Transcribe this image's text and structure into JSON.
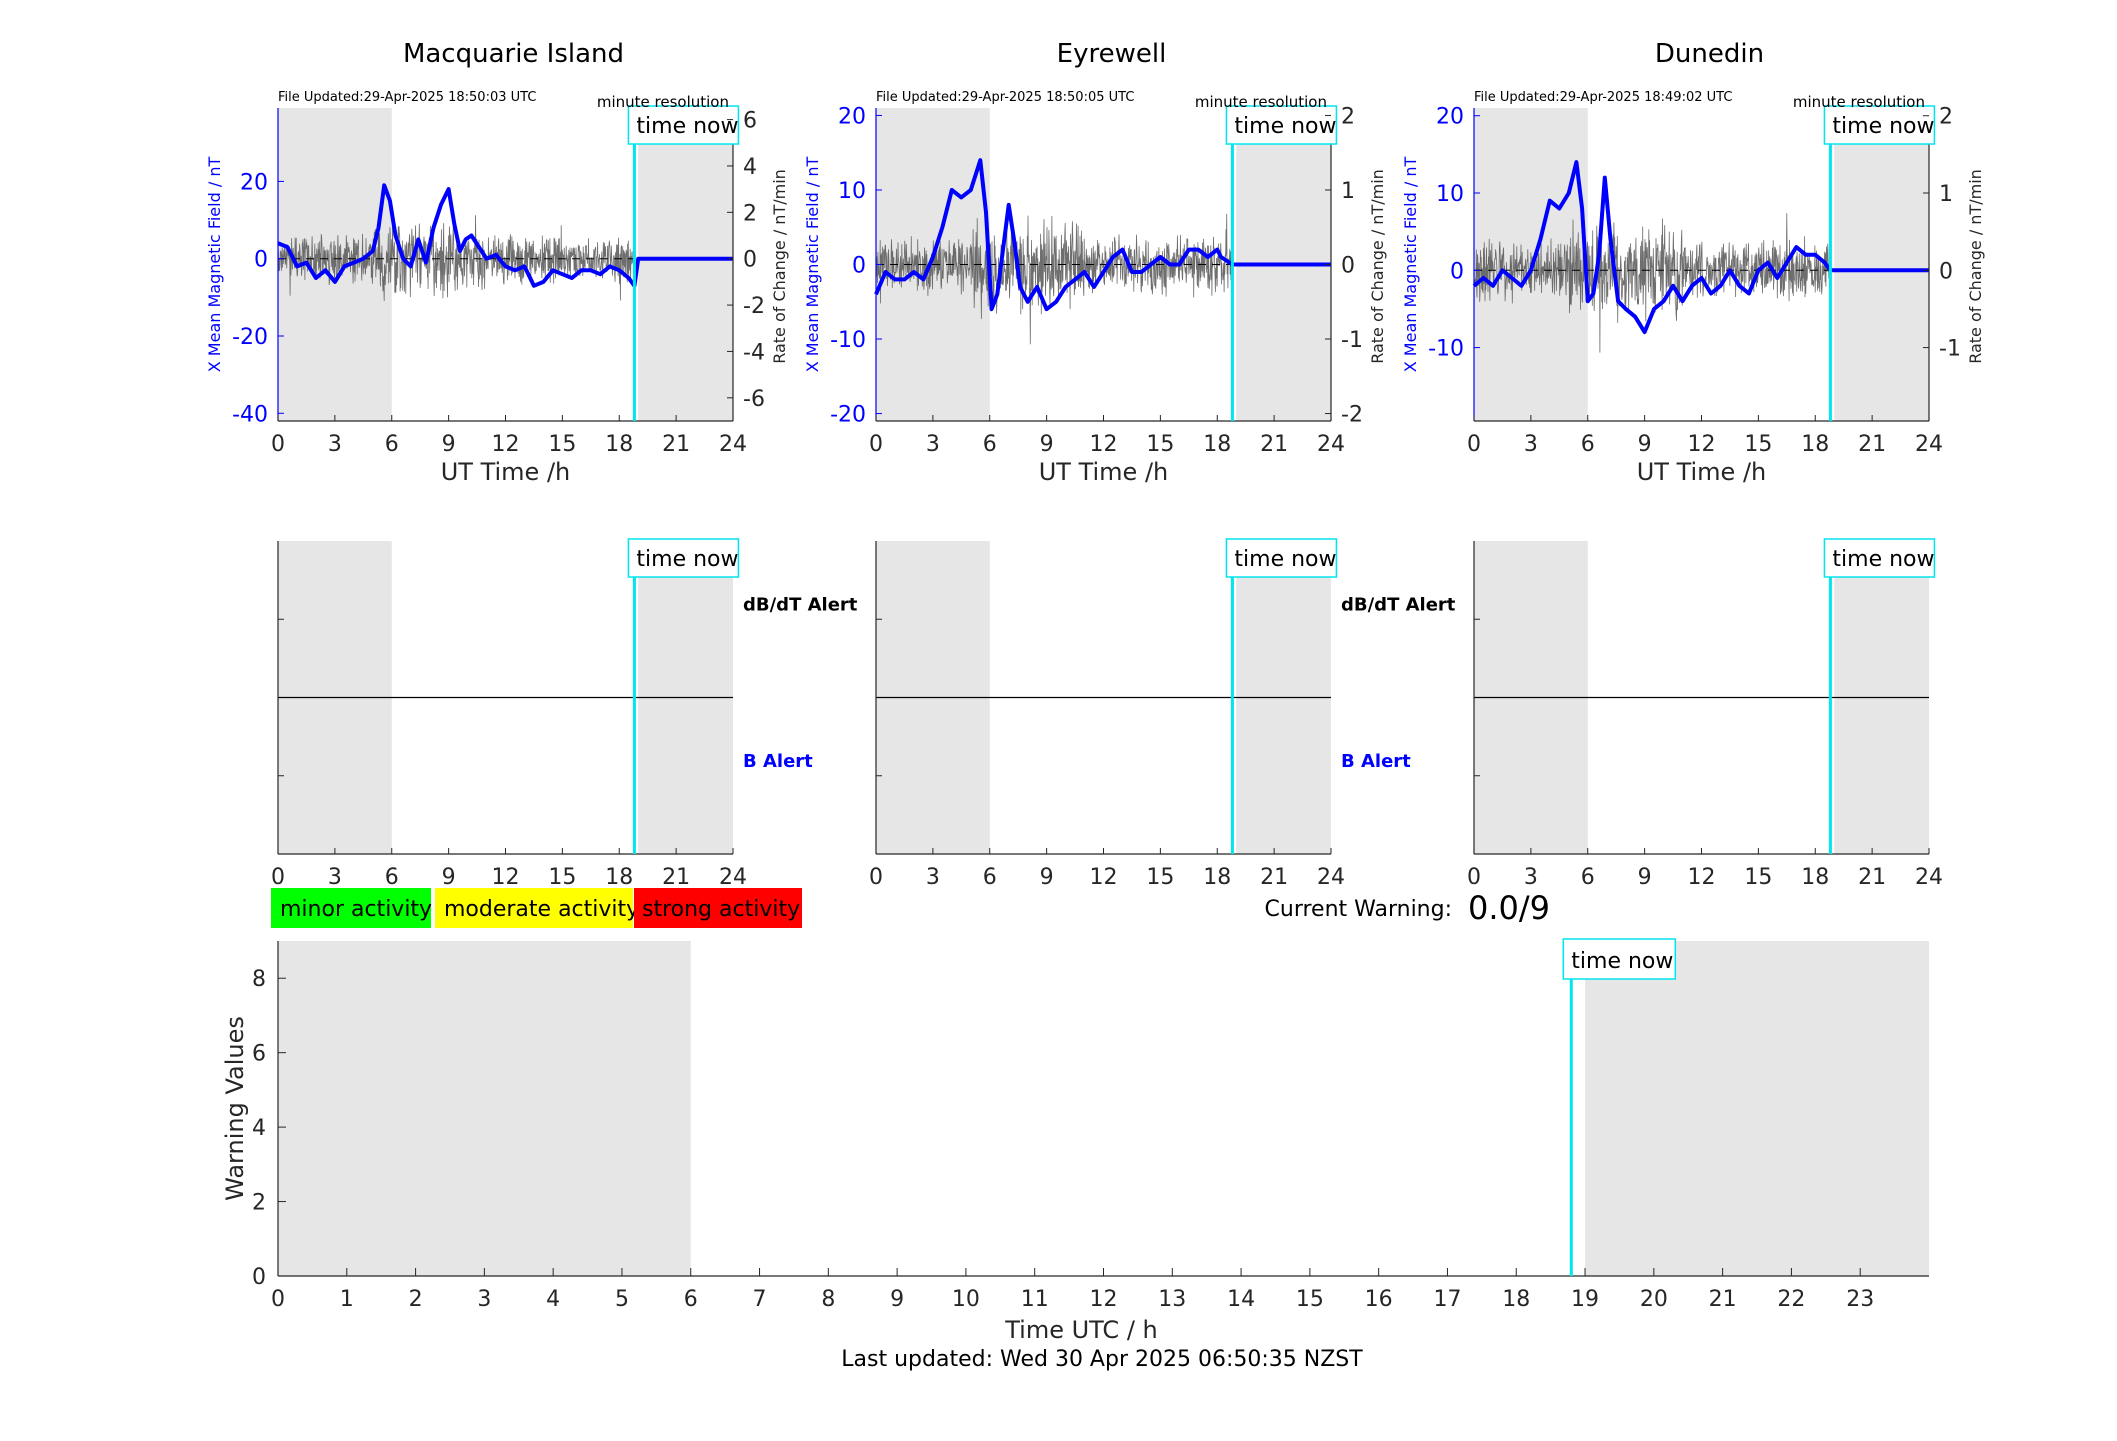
{
  "page": {
    "last_updated": "Last updated: Wed 30 Apr 2025 06:50:35 NZST",
    "current_warning_label": "Current Warning:",
    "current_warning_value": "0.0/9"
  },
  "colors": {
    "magnetic": "#0000ff",
    "rate": "#000000",
    "night_shade": "#e6e6e6",
    "time_now": "#00e5ee",
    "minor": "#00ff00",
    "moderate": "#ffff00",
    "strong": "#ff0000"
  },
  "legend": [
    {
      "label": "minor activity",
      "color": "#00ff00"
    },
    {
      "label": "moderate activity",
      "color": "#ffff00"
    },
    {
      "label": "strong activity",
      "color": "#ff0000"
    }
  ],
  "chart_data": [
    {
      "id": "macquarie-magnetic",
      "type": "line",
      "title": "Macquarie Island",
      "file_updated": "File Updated:29-Apr-2025 18:50:03 UTC",
      "resolution_label": "minute resolution",
      "time_now_label": "time now",
      "time_now_hour": 18.8,
      "night_shading": [
        [
          0,
          6
        ],
        [
          19,
          24
        ]
      ],
      "xlabel": "UT Time /h",
      "ylabel_left": "X Mean Magnetic Field / nT",
      "ylabel_right": "Rate of Change / nT/min",
      "xlim": [
        0,
        24
      ],
      "xticks": [
        0,
        3,
        6,
        9,
        12,
        15,
        18,
        21,
        24
      ],
      "ylim_left": [
        -42,
        39
      ],
      "yticks_left": [
        -40,
        -20,
        0,
        20
      ],
      "ylim_right": [
        -7,
        6.5
      ],
      "yticks_right": [
        -6,
        -4,
        -2,
        0,
        2,
        4,
        6
      ],
      "rate_noise_amplitude": 1.2,
      "series": [
        {
          "axis": "left",
          "x": [
            0,
            0.5,
            1,
            1.5,
            2,
            2.5,
            3,
            3.5,
            4,
            4.5,
            5,
            5.3,
            5.6,
            5.9,
            6.2,
            6.6,
            7.0,
            7.4,
            7.8,
            8.2,
            8.6,
            9.0,
            9.3,
            9.6,
            9.9,
            10.2,
            10.6,
            11.0,
            11.5,
            12,
            12.5,
            13,
            13.5,
            14,
            14.5,
            15,
            15.5,
            16,
            16.5,
            17,
            17.5,
            18,
            18.5,
            18.8,
            19,
            24
          ],
          "y": [
            4,
            3,
            -2,
            -1,
            -5,
            -3,
            -6,
            -2,
            -1,
            0,
            2,
            8,
            19,
            15,
            6,
            0,
            -2,
            5,
            -1,
            8,
            14,
            18,
            9,
            2,
            5,
            6,
            3,
            0,
            1,
            -2,
            -3,
            -2,
            -7,
            -6,
            -3,
            -4,
            -5,
            -3,
            -3,
            -4,
            -2,
            -3,
            -5,
            -7,
            0,
            0
          ]
        }
      ]
    },
    {
      "id": "eyrewell-magnetic",
      "type": "line",
      "title": "Eyrewell",
      "file_updated": "File Updated:29-Apr-2025 18:50:05 UTC",
      "resolution_label": "minute resolution",
      "time_now_label": "time now",
      "time_now_hour": 18.8,
      "night_shading": [
        [
          0,
          6
        ],
        [
          19,
          24
        ]
      ],
      "xlabel": "UT Time /h",
      "ylabel_left": "X Mean Magnetic Field / nT",
      "ylabel_right": "Rate of Change / nT/min",
      "xlim": [
        0,
        24
      ],
      "xticks": [
        0,
        3,
        6,
        9,
        12,
        15,
        18,
        21,
        24
      ],
      "ylim_left": [
        -21,
        21
      ],
      "yticks_left": [
        -20,
        -10,
        0,
        10,
        20
      ],
      "ylim_right": [
        -2.1,
        2.1
      ],
      "yticks_right": [
        -2,
        -1,
        0,
        1,
        2
      ],
      "rate_noise_amplitude": 0.45,
      "series": [
        {
          "axis": "left",
          "x": [
            0,
            0.5,
            1,
            1.5,
            2,
            2.5,
            3,
            3.5,
            4,
            4.5,
            5,
            5.5,
            5.8,
            6.1,
            6.4,
            6.7,
            7.0,
            7.3,
            7.6,
            8.0,
            8.5,
            9.0,
            9.5,
            10,
            10.5,
            11,
            11.5,
            12,
            12.5,
            13,
            13.5,
            14,
            14.5,
            15,
            15.5,
            16,
            16.5,
            17,
            17.5,
            18,
            18.2,
            18.8,
            24
          ],
          "y": [
            -4,
            -1,
            -2,
            -2,
            -1,
            -2,
            1,
            5,
            10,
            9,
            10,
            14,
            7,
            -6,
            -4,
            2,
            8,
            3,
            -3,
            -5,
            -3,
            -6,
            -5,
            -3,
            -2,
            -1,
            -3,
            -1,
            1,
            2,
            -1,
            -1,
            0,
            1,
            0,
            0,
            2,
            2,
            1,
            2,
            1,
            0,
            0
          ]
        }
      ]
    },
    {
      "id": "dunedin-magnetic",
      "type": "line",
      "title": "Dunedin",
      "file_updated": "File Updated:29-Apr-2025 18:49:02 UTC",
      "resolution_label": "minute resolution",
      "time_now_label": "time now",
      "time_now_hour": 18.8,
      "night_shading": [
        [
          0,
          6
        ],
        [
          19,
          24
        ]
      ],
      "xlabel": "UT Time /h",
      "ylabel_left": "X Mean Magnetic Field / nT",
      "ylabel_right": "Rate of Change / nT/min",
      "xlim": [
        0,
        24
      ],
      "xticks": [
        0,
        3,
        6,
        9,
        12,
        15,
        18,
        21,
        24
      ],
      "ylim_left": [
        -19.5,
        21
      ],
      "yticks_left": [
        -10,
        0,
        10,
        20
      ],
      "ylim_right": [
        -1.95,
        2.1
      ],
      "yticks_right": [
        -1,
        0,
        1,
        2
      ],
      "rate_noise_amplitude": 0.45,
      "series": [
        {
          "axis": "left",
          "x": [
            0,
            0.5,
            1,
            1.5,
            2,
            2.5,
            3,
            3.5,
            4,
            4.5,
            5,
            5.4,
            5.7,
            6.0,
            6.3,
            6.6,
            6.9,
            7.2,
            7.6,
            8.0,
            8.5,
            9.0,
            9.5,
            10,
            10.5,
            11,
            11.5,
            12,
            12.5,
            13,
            13.5,
            14,
            14.5,
            15,
            15.5,
            16,
            16.5,
            17,
            17.5,
            18,
            18.5,
            18.8,
            24
          ],
          "y": [
            -2,
            -1,
            -2,
            0,
            -1,
            -2,
            0,
            4,
            9,
            8,
            10,
            14,
            8,
            -4,
            -3,
            2,
            12,
            4,
            -4,
            -5,
            -6,
            -8,
            -5,
            -4,
            -2,
            -4,
            -2,
            -1,
            -3,
            -2,
            0,
            -2,
            -3,
            0,
            1,
            -1,
            1,
            3,
            2,
            2,
            1,
            0,
            0
          ]
        }
      ]
    },
    {
      "id": "macquarie-alert",
      "type": "line",
      "time_now_label": "time now",
      "time_now_hour": 18.8,
      "night_shading": [
        [
          0,
          6
        ],
        [
          19,
          24
        ]
      ],
      "xlim": [
        0,
        24
      ],
      "xticks": [
        0,
        3,
        6,
        9,
        12,
        15,
        18,
        21,
        24
      ],
      "ylim": [
        0,
        2
      ],
      "divider_y": 1,
      "upper_label": "dB/dT Alert",
      "lower_label": "B Alert"
    },
    {
      "id": "eyrewell-alert",
      "type": "line",
      "time_now_label": "time now",
      "time_now_hour": 18.8,
      "night_shading": [
        [
          0,
          6
        ],
        [
          19,
          24
        ]
      ],
      "xlim": [
        0,
        24
      ],
      "xticks": [
        0,
        3,
        6,
        9,
        12,
        15,
        18,
        21,
        24
      ],
      "ylim": [
        0,
        2
      ],
      "divider_y": 1,
      "upper_label": "dB/dT Alert",
      "lower_label": "B Alert"
    },
    {
      "id": "dunedin-alert",
      "type": "line",
      "time_now_label": "time now",
      "time_now_hour": 18.8,
      "night_shading": [
        [
          0,
          6
        ],
        [
          19,
          24
        ]
      ],
      "xlim": [
        0,
        24
      ],
      "xticks": [
        0,
        3,
        6,
        9,
        12,
        15,
        18,
        21,
        24
      ],
      "ylim": [
        0,
        2
      ],
      "divider_y": 1,
      "upper_label": "",
      "lower_label": ""
    },
    {
      "id": "warning-values",
      "type": "bar",
      "xlabel": "Time UTC / h",
      "ylabel": "Warning Values",
      "xlim": [
        0,
        24
      ],
      "xticks": [
        0,
        1,
        2,
        3,
        4,
        5,
        6,
        7,
        8,
        9,
        10,
        11,
        12,
        13,
        14,
        15,
        16,
        17,
        18,
        19,
        20,
        21,
        22,
        23
      ],
      "ylim": [
        0,
        9
      ],
      "yticks": [
        0,
        2,
        4,
        6,
        8
      ],
      "night_shading": [
        [
          0,
          6
        ],
        [
          19,
          24
        ]
      ],
      "time_now_label": "time now",
      "time_now_hour": 18.8,
      "values": []
    }
  ]
}
